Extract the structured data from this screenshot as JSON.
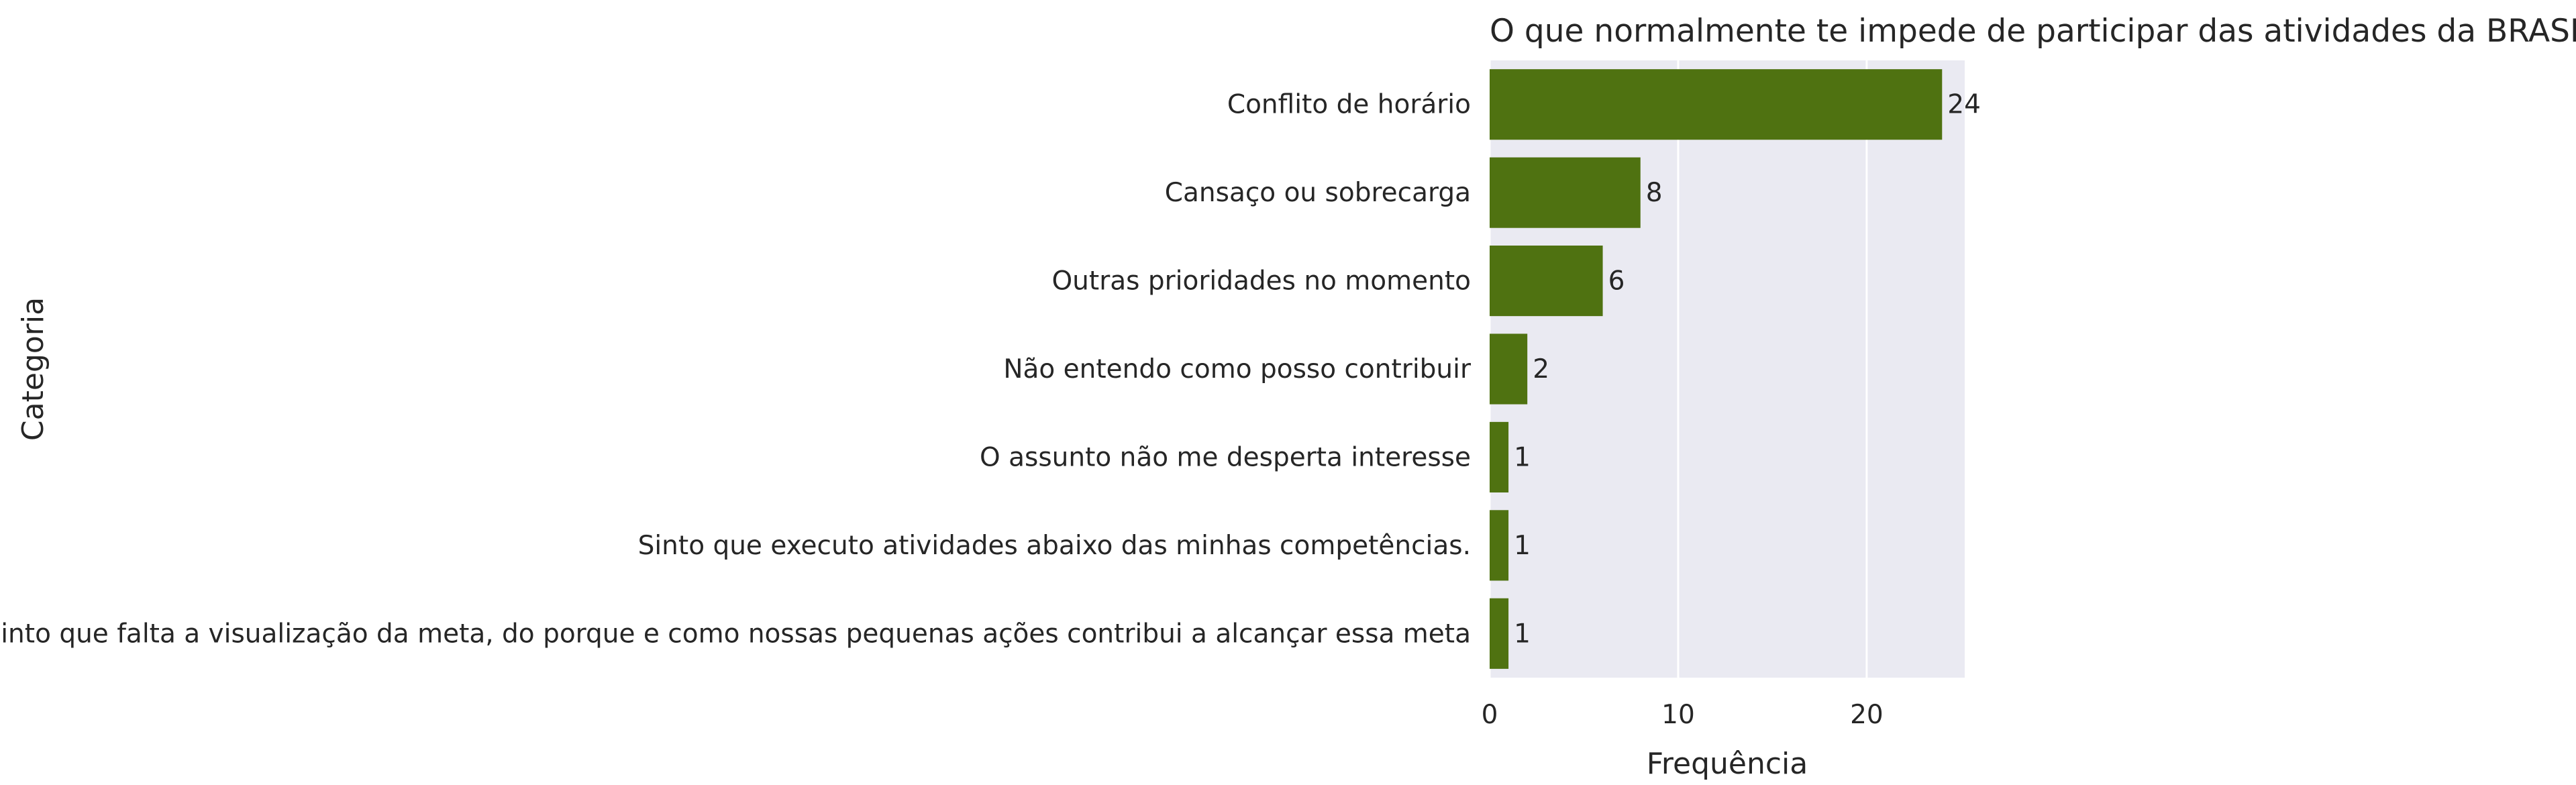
{
  "chart_data": {
    "type": "bar",
    "orientation": "horizontal",
    "title": "O que normalmente te impede de participar das atividades da BRASFI?",
    "xlabel": "Frequência",
    "ylabel": "Categoria",
    "categories": [
      "Conflito de horário",
      "Cansaço ou sobrecarga",
      "Outras prioridades no momento",
      "Não entendo como posso contribuir",
      "O assunto não me desperta interesse",
      "Sinto que executo atividades abaixo das minhas competências.",
      "sinto que falta a visualização da meta, do porque  e como nossas pequenas ações contribui a alcançar essa meta"
    ],
    "values": [
      24,
      8,
      6,
      2,
      1,
      1,
      1
    ],
    "data_labels": [
      "24",
      "8",
      "6",
      "2",
      "1",
      "1",
      "1"
    ],
    "xticks": [
      0,
      10,
      20
    ],
    "xtick_labels": [
      "0",
      "10",
      "20"
    ],
    "xlim": [
      0,
      25.2
    ],
    "grid": true,
    "legend": "none",
    "colors": {
      "bar": "#4f7211",
      "plot_background": "#eaeaf2",
      "grid": "#ffffff",
      "text": "#262626"
    }
  }
}
